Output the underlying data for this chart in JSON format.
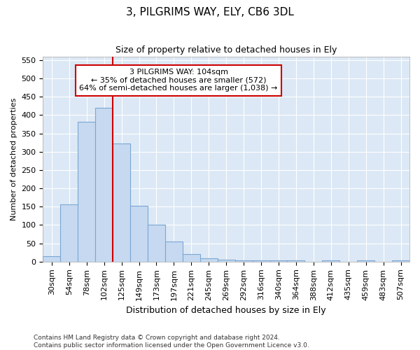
{
  "title1": "3, PILGRIMS WAY, ELY, CB6 3DL",
  "title2": "Size of property relative to detached houses in Ely",
  "xlabel": "Distribution of detached houses by size in Ely",
  "ylabel": "Number of detached properties",
  "bins": [
    "30sqm",
    "54sqm",
    "78sqm",
    "102sqm",
    "125sqm",
    "149sqm",
    "173sqm",
    "197sqm",
    "221sqm",
    "245sqm",
    "269sqm",
    "292sqm",
    "316sqm",
    "340sqm",
    "364sqm",
    "388sqm",
    "412sqm",
    "435sqm",
    "459sqm",
    "483sqm",
    "507sqm"
  ],
  "bar_heights": [
    15,
    157,
    381,
    420,
    323,
    153,
    100,
    55,
    20,
    10,
    5,
    3,
    3,
    3,
    3,
    0,
    3,
    0,
    3,
    0,
    3
  ],
  "bar_color": "#c6d9f0",
  "bar_edge_color": "#7ba7d4",
  "vline_color": "#cc0000",
  "vline_x": 3.5,
  "annotation_text": "3 PILGRIMS WAY: 104sqm\n← 35% of detached houses are smaller (572)\n64% of semi-detached houses are larger (1,038) →",
  "annotation_box_color": "#ffffff",
  "annotation_box_edge_color": "#cc0000",
  "ylim": [
    0,
    560
  ],
  "yticks": [
    0,
    50,
    100,
    150,
    200,
    250,
    300,
    350,
    400,
    450,
    500,
    550
  ],
  "plot_bg_color": "#dce8f5",
  "fig_bg_color": "#ffffff",
  "grid_color": "#ffffff",
  "footer": "Contains HM Land Registry data © Crown copyright and database right 2024.\nContains public sector information licensed under the Open Government Licence v3.0.",
  "title1_fontsize": 11,
  "title2_fontsize": 9,
  "xlabel_fontsize": 9,
  "ylabel_fontsize": 8,
  "tick_fontsize": 8,
  "annotation_fontsize": 8,
  "footer_fontsize": 6.5
}
